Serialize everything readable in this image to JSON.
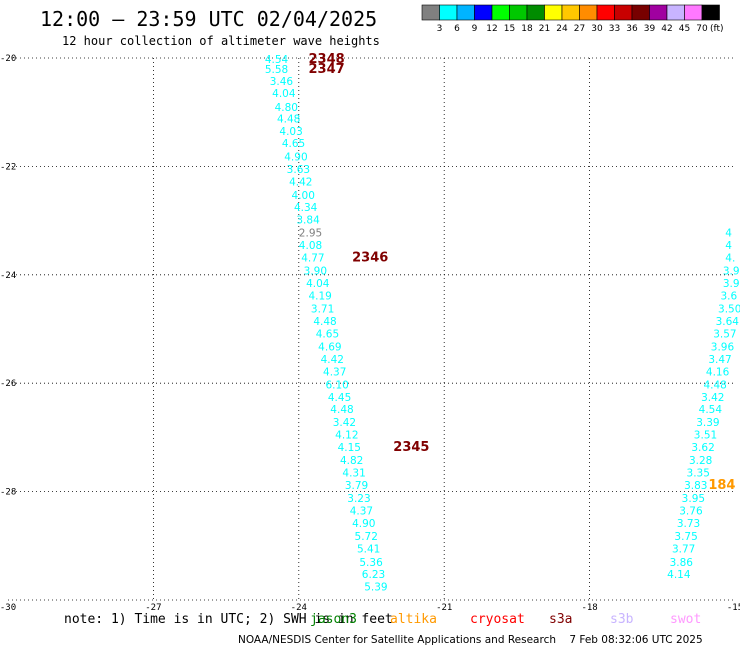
{
  "header": {
    "title": "12:00 – 23:59 UTC 02/04/2025",
    "subtitle": "12 hour collection of altimeter wave heights"
  },
  "color_scale": {
    "labels": [
      "3",
      "6",
      "9",
      "12",
      "15",
      "18",
      "21",
      "24",
      "27",
      "30",
      "33",
      "36",
      "39",
      "42",
      "45",
      "70"
    ],
    "unit": "(ft)",
    "colors": [
      "#808080",
      "#00ffff",
      "#00b4ff",
      "#0000ff",
      "#00ff00",
      "#00c800",
      "#008c00",
      "#ffff00",
      "#ffc800",
      "#ff8c00",
      "#ff0000",
      "#c80000",
      "#780000",
      "#a000a0",
      "#c8b4ff",
      "#ff78ff",
      "#000000"
    ]
  },
  "footer": {
    "note": "note: 1) Time is in UTC; 2) SWH is in feet",
    "satellites": [
      {
        "name": "jason3",
        "color": "#008000"
      },
      {
        "name": "altika",
        "color": "#ff9900"
      },
      {
        "name": "cryosat",
        "color": "#ff0000"
      },
      {
        "name": "s3a",
        "color": "#800000"
      },
      {
        "name": "s3b",
        "color": "#c8b4ff"
      },
      {
        "name": "swot",
        "color": "#ff99ff"
      }
    ],
    "credit": "NOAA/NESDIS Center for Satellite Applications and Research    7 Feb 08:32:06 UTC 2025"
  },
  "chart_data": {
    "type": "scatter",
    "title": "12:00 – 23:59 UTC 02/04/2025",
    "xlim": [
      -30,
      -15
    ],
    "ylim": [
      -30,
      -20
    ],
    "x_ticks": [
      "-30",
      "-27",
      "-24",
      "-21",
      "-18",
      "-15"
    ],
    "y_ticks": [
      "-20",
      "-22",
      "-24",
      "-26",
      "-28",
      "-30"
    ],
    "grid": true,
    "tracks": [
      {
        "color": "#00ffff",
        "points": [
          {
            "x": -24.7,
            "y": -20.02,
            "v": "4.54"
          },
          {
            "x": -24.7,
            "y": -20.2,
            "v": "5.58"
          },
          {
            "x": -24.6,
            "y": -20.42,
            "v": "3.46"
          },
          {
            "x": -24.55,
            "y": -20.65,
            "v": "4.04"
          },
          {
            "x": -24.5,
            "y": -20.9,
            "v": "4.80"
          },
          {
            "x": -24.45,
            "y": -21.12,
            "v": "4.48"
          },
          {
            "x": -24.4,
            "y": -21.35,
            "v": "4.03"
          },
          {
            "x": -24.35,
            "y": -21.57,
            "v": "4.65"
          },
          {
            "x": -24.3,
            "y": -21.82,
            "v": "4.90"
          },
          {
            "x": -24.25,
            "y": -22.05,
            "v": "3.63"
          },
          {
            "x": -24.2,
            "y": -22.28,
            "v": "4.42"
          },
          {
            "x": -24.15,
            "y": -22.53,
            "v": "4.00"
          },
          {
            "x": -24.1,
            "y": -22.75,
            "v": "4.34"
          },
          {
            "x": -24.05,
            "y": -22.98,
            "v": "3.84"
          },
          {
            "x": -24.0,
            "y": -23.45,
            "v": "4.08"
          },
          {
            "x": -23.95,
            "y": -23.68,
            "v": "4.77"
          },
          {
            "x": -23.9,
            "y": -23.92,
            "v": "3.90"
          },
          {
            "x": -23.85,
            "y": -24.15,
            "v": "4.04"
          },
          {
            "x": -23.8,
            "y": -24.38,
            "v": "4.19"
          },
          {
            "x": -23.75,
            "y": -24.62,
            "v": "3.71"
          },
          {
            "x": -23.7,
            "y": -24.85,
            "v": "4.48"
          },
          {
            "x": -23.65,
            "y": -25.08,
            "v": "4.65"
          },
          {
            "x": -23.6,
            "y": -25.32,
            "v": "4.69"
          },
          {
            "x": -23.55,
            "y": -25.55,
            "v": "4.42"
          },
          {
            "x": -23.5,
            "y": -25.78,
            "v": "4.37"
          },
          {
            "x": -23.45,
            "y": -26.02,
            "v": "6.10"
          },
          {
            "x": -23.4,
            "y": -26.25,
            "v": "4.45"
          },
          {
            "x": -23.35,
            "y": -26.48,
            "v": "4.48"
          },
          {
            "x": -23.3,
            "y": -26.72,
            "v": "3.42"
          },
          {
            "x": -23.25,
            "y": -26.95,
            "v": "4.12"
          },
          {
            "x": -23.2,
            "y": -27.18,
            "v": "4.15"
          },
          {
            "x": -23.15,
            "y": -27.42,
            "v": "4.82"
          },
          {
            "x": -23.1,
            "y": -27.65,
            "v": "4.31"
          },
          {
            "x": -23.05,
            "y": -27.88,
            "v": "3.79"
          },
          {
            "x": -23.0,
            "y": -28.12,
            "v": "3.23"
          },
          {
            "x": -22.95,
            "y": -28.35,
            "v": "4.37"
          },
          {
            "x": -22.9,
            "y": -28.58,
            "v": "4.90"
          },
          {
            "x": -22.85,
            "y": -28.82,
            "v": "5.72"
          },
          {
            "x": -22.8,
            "y": -29.05,
            "v": "5.41"
          },
          {
            "x": -22.75,
            "y": -29.3,
            "v": "5.36"
          },
          {
            "x": -22.7,
            "y": -29.52,
            "v": "6.23"
          },
          {
            "x": -22.65,
            "y": -29.75,
            "v": "5.39"
          }
        ]
      },
      {
        "color": "#808080",
        "points": [
          {
            "x": -24.0,
            "y": -23.22,
            "v": "2.95"
          }
        ]
      },
      {
        "color": "#00ffff",
        "points": [
          {
            "x": -15.2,
            "y": -23.22,
            "v": "4"
          },
          {
            "x": -15.2,
            "y": -23.45,
            "v": "4"
          },
          {
            "x": -15.2,
            "y": -23.68,
            "v": "4."
          },
          {
            "x": -15.25,
            "y": -23.92,
            "v": "3.9"
          },
          {
            "x": -15.25,
            "y": -24.15,
            "v": "3.9"
          },
          {
            "x": -15.3,
            "y": -24.38,
            "v": "3.6"
          },
          {
            "x": -15.35,
            "y": -24.62,
            "v": "3.50"
          },
          {
            "x": -15.4,
            "y": -24.85,
            "v": "3.64"
          },
          {
            "x": -15.45,
            "y": -25.08,
            "v": "3.57"
          },
          {
            "x": -15.5,
            "y": -25.32,
            "v": "3.96"
          },
          {
            "x": -15.55,
            "y": -25.55,
            "v": "3.47"
          },
          {
            "x": -15.6,
            "y": -25.78,
            "v": "4.16"
          },
          {
            "x": -15.65,
            "y": -26.02,
            "v": "4.48"
          },
          {
            "x": -15.7,
            "y": -26.25,
            "v": "3.42"
          },
          {
            "x": -15.75,
            "y": -26.48,
            "v": "4.54"
          },
          {
            "x": -15.8,
            "y": -26.72,
            "v": "3.39"
          },
          {
            "x": -15.85,
            "y": -26.95,
            "v": "3.51"
          },
          {
            "x": -15.9,
            "y": -27.18,
            "v": "3.62"
          },
          {
            "x": -15.95,
            "y": -27.42,
            "v": "3.28"
          },
          {
            "x": -16.0,
            "y": -27.65,
            "v": "3.35"
          },
          {
            "x": -16.05,
            "y": -27.88,
            "v": "3.83"
          },
          {
            "x": -16.1,
            "y": -28.12,
            "v": "3.95"
          },
          {
            "x": -16.15,
            "y": -28.35,
            "v": "3.76"
          },
          {
            "x": -16.2,
            "y": -28.58,
            "v": "3.73"
          },
          {
            "x": -16.25,
            "y": -28.82,
            "v": "3.75"
          },
          {
            "x": -16.3,
            "y": -29.05,
            "v": "3.77"
          },
          {
            "x": -16.35,
            "y": -29.3,
            "v": "3.86"
          },
          {
            "x": -16.4,
            "y": -29.52,
            "v": "4.14"
          }
        ]
      }
    ],
    "pass_labels": [
      {
        "x": -23.8,
        "y": -20.02,
        "v": "2348",
        "color": "#800000"
      },
      {
        "x": -23.8,
        "y": -20.2,
        "v": "2347",
        "color": "#800000"
      },
      {
        "x": -22.9,
        "y": -23.68,
        "v": "2346",
        "color": "#800000"
      },
      {
        "x": -22.05,
        "y": -27.18,
        "v": "2345",
        "color": "#800000"
      },
      {
        "x": -15.55,
        "y": -27.88,
        "v": "184",
        "color": "#ff9900"
      }
    ]
  }
}
